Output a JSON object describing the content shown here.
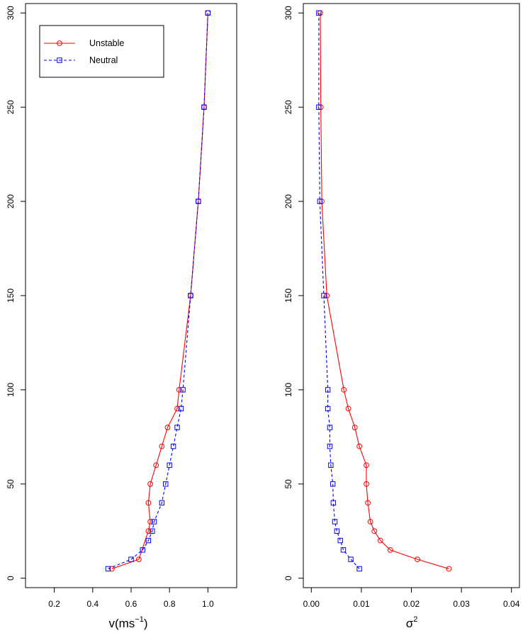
{
  "chart_data": [
    {
      "type": "line",
      "xlabel": "v(ms",
      "xlabel_superscript": "−1",
      "xlabel_suffix": ")",
      "ylabel": "",
      "xlim": [
        0.05,
        1.15
      ],
      "ylim": [
        -5,
        305
      ],
      "xticks": [
        0.2,
        0.4,
        0.6,
        0.8,
        1.0
      ],
      "xtick_labels": [
        "0.2",
        "0.4",
        "0.6",
        "0.8",
        "1.0"
      ],
      "yticks": [
        0,
        50,
        100,
        150,
        200,
        250,
        300
      ],
      "ytick_labels": [
        "0",
        "50",
        "100",
        "150",
        "200",
        "250",
        "300"
      ],
      "grid": false,
      "legend": {
        "position": "top-left"
      },
      "series": [
        {
          "name": "Unstable",
          "color": "#ff0000",
          "line_style": "solid",
          "marker": "circle",
          "x": [
            0.5,
            0.64,
            0.69,
            0.7,
            0.69,
            0.7,
            0.73,
            0.76,
            0.79,
            0.84,
            0.85,
            0.91,
            0.95,
            0.98,
            1.0
          ],
          "y": [
            5,
            10,
            25,
            30,
            40,
            50,
            60,
            70,
            80,
            90,
            100,
            150,
            200,
            250,
            300
          ]
        },
        {
          "name": "Neutral",
          "color": "#0000ff",
          "line_style": "dashed",
          "marker": "square",
          "x": [
            0.48,
            0.6,
            0.66,
            0.69,
            0.71,
            0.72,
            0.76,
            0.78,
            0.8,
            0.82,
            0.84,
            0.86,
            0.87,
            0.91,
            0.95,
            0.98,
            1.0
          ],
          "y": [
            5,
            10,
            15,
            20,
            25,
            30,
            40,
            50,
            60,
            70,
            80,
            90,
            100,
            150,
            200,
            250,
            300
          ]
        }
      ]
    },
    {
      "type": "line",
      "xlabel": "σ",
      "xlabel_superscript": "2",
      "xlabel_suffix": "",
      "ylabel": "",
      "xlim": [
        -0.0016,
        0.0416
      ],
      "ylim": [
        -5,
        305
      ],
      "xticks": [
        0.0,
        0.01,
        0.02,
        0.03,
        0.04
      ],
      "xtick_labels": [
        "0.00",
        "0.01",
        "0.02",
        "0.03",
        "0.04"
      ],
      "yticks": [
        0,
        50,
        100,
        150,
        200,
        250,
        300
      ],
      "ytick_labels": [
        "0",
        "50",
        "100",
        "150",
        "200",
        "250",
        "300"
      ],
      "grid": false,
      "series": [
        {
          "name": "Unstable",
          "color": "#ff0000",
          "line_style": "solid",
          "marker": "circle",
          "x": [
            0.0275,
            0.0212,
            0.0158,
            0.0138,
            0.0126,
            0.0118,
            0.0113,
            0.011,
            0.011,
            0.0096,
            0.0087,
            0.0074,
            0.0065,
            0.0031,
            0.0021,
            0.0019,
            0.0018
          ],
          "y": [
            5,
            10,
            15,
            20,
            25,
            30,
            40,
            50,
            60,
            70,
            80,
            90,
            100,
            150,
            200,
            250,
            300
          ]
        },
        {
          "name": "Neutral",
          "color": "#0000ff",
          "line_style": "dashed",
          "marker": "square",
          "x": [
            0.0096,
            0.0079,
            0.0064,
            0.0058,
            0.0051,
            0.0047,
            0.0044,
            0.0043,
            0.0039,
            0.0037,
            0.0037,
            0.0033,
            0.0033,
            0.0025,
            0.0017,
            0.0015,
            0.0015
          ],
          "y": [
            5,
            10,
            15,
            20,
            25,
            30,
            40,
            50,
            60,
            70,
            80,
            90,
            100,
            150,
            200,
            250,
            300
          ]
        }
      ]
    }
  ]
}
